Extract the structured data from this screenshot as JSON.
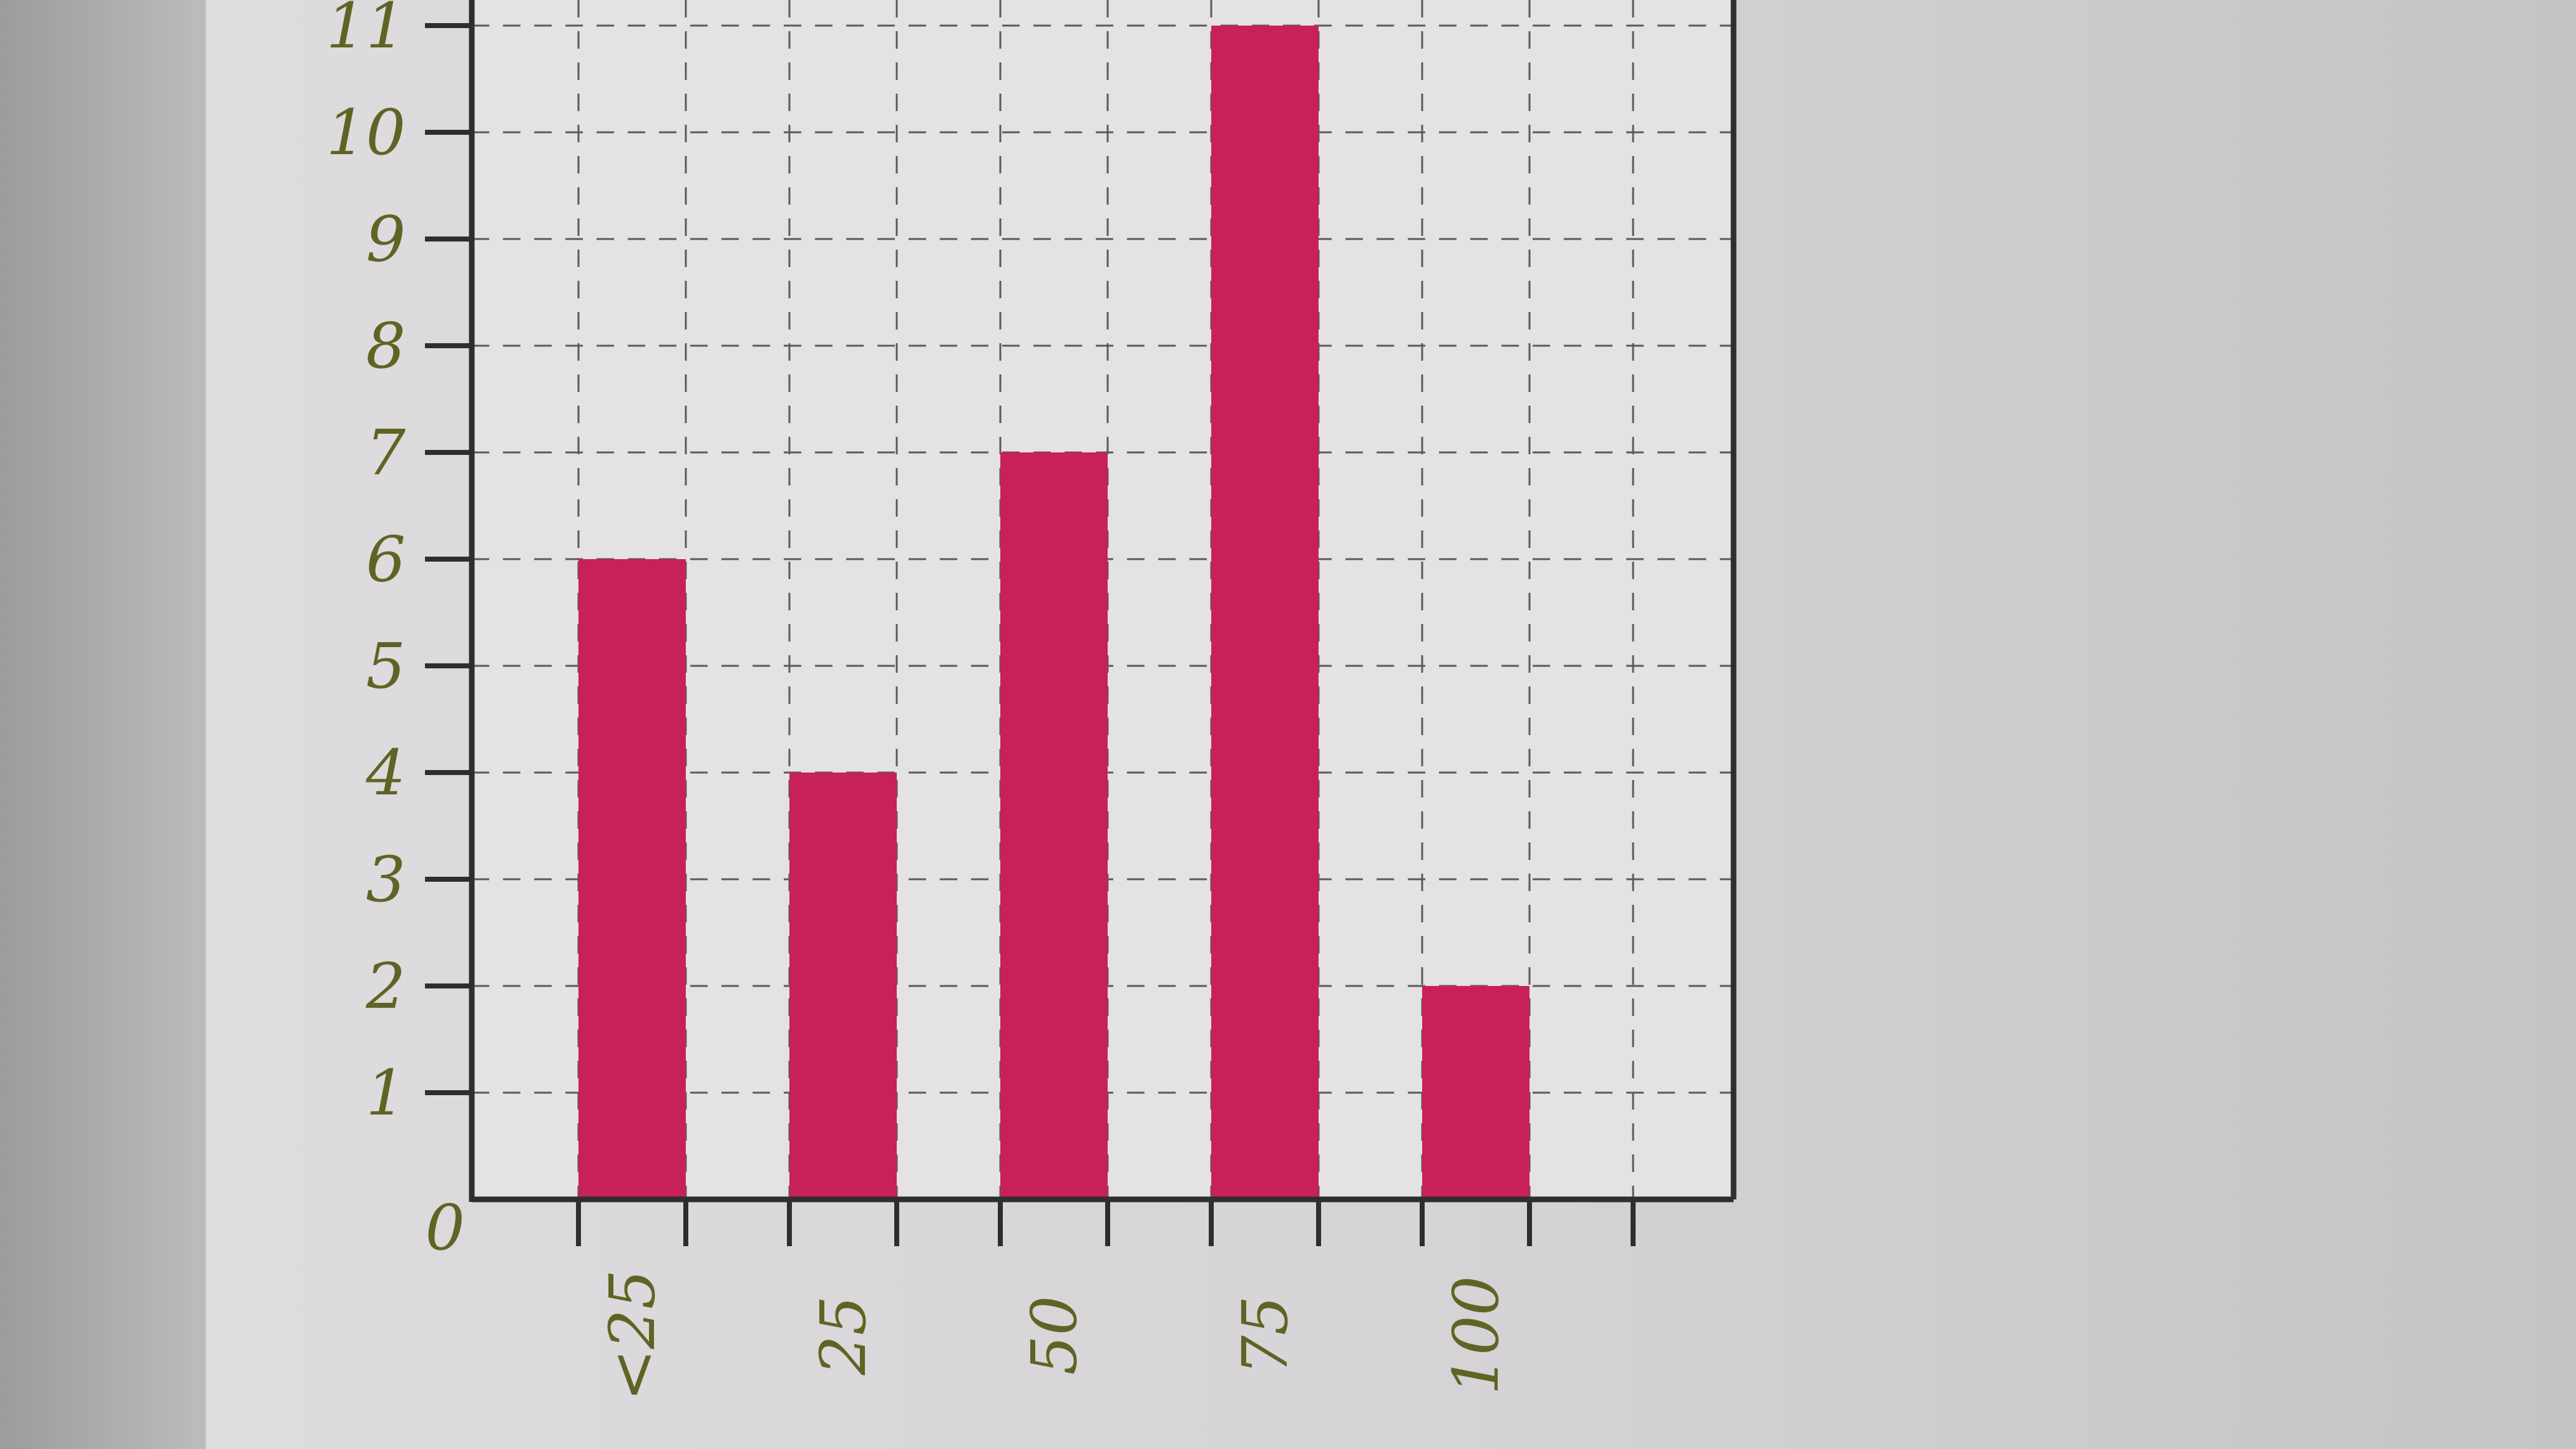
{
  "chart_data": {
    "type": "bar",
    "categories": [
      "<25",
      "25",
      "50",
      "75",
      "100"
    ],
    "values": [
      6,
      4,
      7,
      11,
      2
    ],
    "title": "",
    "xlabel": "",
    "ylabel": "",
    "ylim": [
      0,
      11
    ],
    "yticks": [
      "0",
      "1",
      "2",
      "3",
      "4",
      "5",
      "6",
      "7",
      "8",
      "9",
      "10",
      "11"
    ],
    "grid": true,
    "bar_color": "#c8205a",
    "label_color": "#5e6524"
  }
}
